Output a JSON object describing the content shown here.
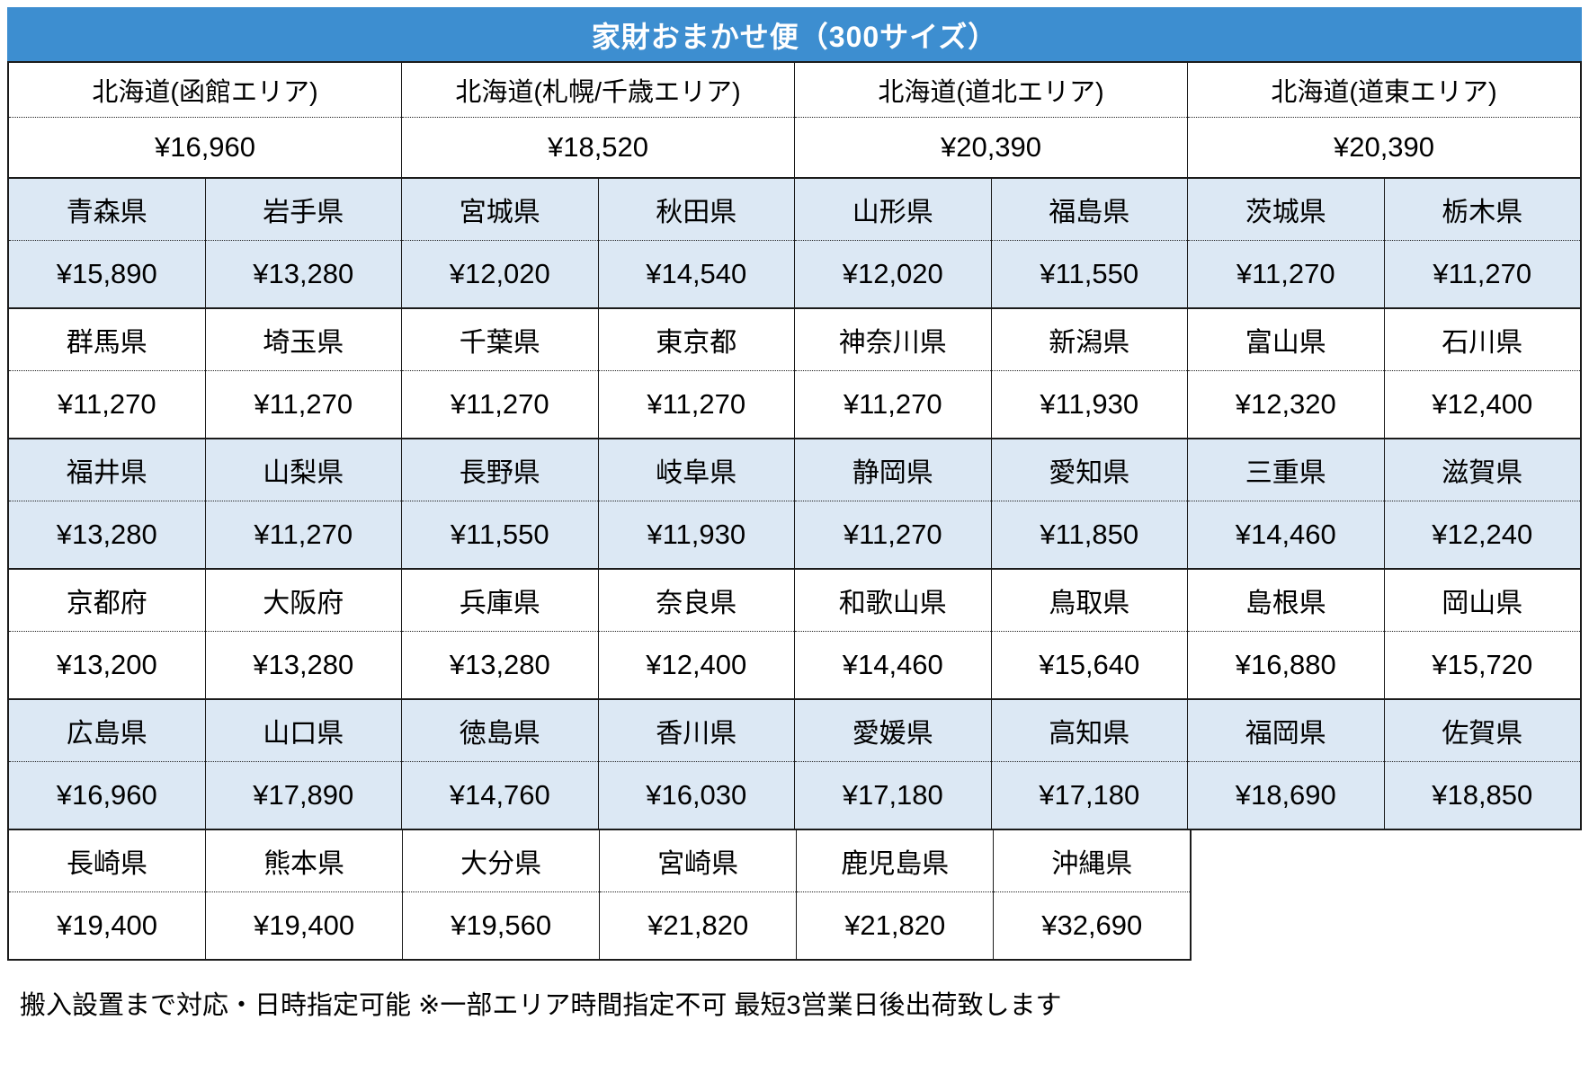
{
  "title": "家財おまかせ便（300サイズ）",
  "colors": {
    "header_bg": "#3d8ed0",
    "row_highlight_bg": "#dce8f4",
    "border": "#1b1b1b",
    "header_text": "#ffffff"
  },
  "hokkaido": {
    "areas": [
      {
        "name": "北海道(函館エリア)",
        "price": "¥16,960"
      },
      {
        "name": "北海道(札幌/千歳エリア)",
        "price": "¥18,520"
      },
      {
        "name": "北海道(道北エリア)",
        "price": "¥20,390"
      },
      {
        "name": "北海道(道東エリア)",
        "price": "¥20,390"
      }
    ]
  },
  "rows": [
    {
      "shade": "blue",
      "cells": [
        {
          "name": "青森県",
          "price": "¥15,890"
        },
        {
          "name": "岩手県",
          "price": "¥13,280"
        },
        {
          "name": "宮城県",
          "price": "¥12,020"
        },
        {
          "name": "秋田県",
          "price": "¥14,540"
        },
        {
          "name": "山形県",
          "price": "¥12,020"
        },
        {
          "name": "福島県",
          "price": "¥11,550"
        },
        {
          "name": "茨城県",
          "price": "¥11,270"
        },
        {
          "name": "栃木県",
          "price": "¥11,270"
        }
      ]
    },
    {
      "shade": "white",
      "cells": [
        {
          "name": "群馬県",
          "price": "¥11,270"
        },
        {
          "name": "埼玉県",
          "price": "¥11,270"
        },
        {
          "name": "千葉県",
          "price": "¥11,270"
        },
        {
          "name": "東京都",
          "price": "¥11,270"
        },
        {
          "name": "神奈川県",
          "price": "¥11,270"
        },
        {
          "name": "新潟県",
          "price": "¥11,930"
        },
        {
          "name": "富山県",
          "price": "¥12,320"
        },
        {
          "name": "石川県",
          "price": "¥12,400"
        }
      ]
    },
    {
      "shade": "blue",
      "cells": [
        {
          "name": "福井県",
          "price": "¥13,280"
        },
        {
          "name": "山梨県",
          "price": "¥11,270"
        },
        {
          "name": "長野県",
          "price": "¥11,550"
        },
        {
          "name": "岐阜県",
          "price": "¥11,930"
        },
        {
          "name": "静岡県",
          "price": "¥11,270"
        },
        {
          "name": "愛知県",
          "price": "¥11,850"
        },
        {
          "name": "三重県",
          "price": "¥14,460"
        },
        {
          "name": "滋賀県",
          "price": "¥12,240"
        }
      ]
    },
    {
      "shade": "white",
      "cells": [
        {
          "name": "京都府",
          "price": "¥13,200"
        },
        {
          "name": "大阪府",
          "price": "¥13,280"
        },
        {
          "name": "兵庫県",
          "price": "¥13,280"
        },
        {
          "name": "奈良県",
          "price": "¥12,400"
        },
        {
          "name": "和歌山県",
          "price": "¥14,460"
        },
        {
          "name": "鳥取県",
          "price": "¥15,640"
        },
        {
          "name": "島根県",
          "price": "¥16,880"
        },
        {
          "name": "岡山県",
          "price": "¥15,720"
        }
      ]
    },
    {
      "shade": "blue",
      "cells": [
        {
          "name": "広島県",
          "price": "¥16,960"
        },
        {
          "name": "山口県",
          "price": "¥17,890"
        },
        {
          "name": "徳島県",
          "price": "¥14,760"
        },
        {
          "name": "香川県",
          "price": "¥16,030"
        },
        {
          "name": "愛媛県",
          "price": "¥17,180"
        },
        {
          "name": "高知県",
          "price": "¥17,180"
        },
        {
          "name": "福岡県",
          "price": "¥18,690"
        },
        {
          "name": "佐賀県",
          "price": "¥18,850"
        }
      ]
    },
    {
      "shade": "white",
      "cells": [
        {
          "name": "長崎県",
          "price": "¥19,400"
        },
        {
          "name": "熊本県",
          "price": "¥19,400"
        },
        {
          "name": "大分県",
          "price": "¥19,560"
        },
        {
          "name": "宮崎県",
          "price": "¥21,820"
        },
        {
          "name": "鹿児島県",
          "price": "¥21,820"
        },
        {
          "name": "沖縄県",
          "price": "¥32,690"
        }
      ]
    }
  ],
  "footer": "搬入設置まで対応・日時指定可能 ※一部エリア時間指定不可 最短3営業日後出荷致します"
}
